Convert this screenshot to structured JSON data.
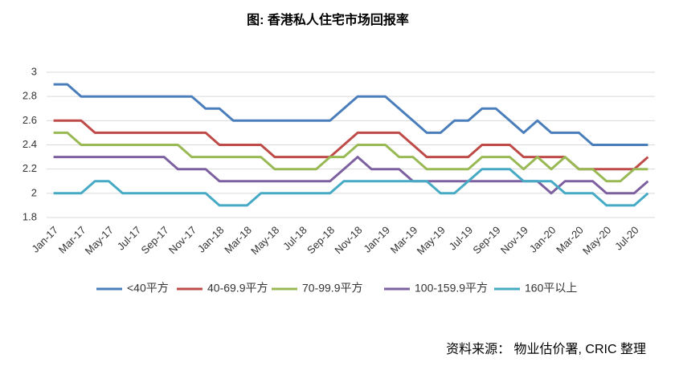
{
  "chart_data": {
    "type": "line",
    "title": "图: 香港私人住宅市场回报率",
    "source": "资料来源： 物业估价署, CRIC 整理",
    "categories": [
      "Jan-17",
      null,
      "Mar-17",
      null,
      "May-17",
      null,
      "Jul-17",
      null,
      "Sep-17",
      null,
      "Nov-17",
      null,
      "Jan-18",
      null,
      "Mar-18",
      null,
      "May-18",
      null,
      "Jul-18",
      null,
      "Sep-18",
      null,
      "Nov-18",
      null,
      "Jan-19",
      null,
      "Mar-19",
      null,
      "May-19",
      null,
      "Jul-19",
      null,
      "Sep-19",
      null,
      "Nov-19",
      null,
      "Jan-20",
      null,
      "Mar-20",
      null,
      "May-20",
      null,
      "Jul-20",
      null
    ],
    "series": [
      {
        "name": "<40平方",
        "color": "#4a7ebb",
        "values": [
          2.9,
          2.9,
          2.8,
          2.8,
          2.8,
          2.8,
          2.8,
          2.8,
          2.8,
          2.8,
          2.8,
          2.7,
          2.7,
          2.6,
          2.6,
          2.6,
          2.6,
          2.6,
          2.6,
          2.6,
          2.6,
          2.7,
          2.8,
          2.8,
          2.8,
          2.7,
          2.6,
          2.5,
          2.5,
          2.6,
          2.6,
          2.7,
          2.7,
          2.6,
          2.5,
          2.6,
          2.5,
          2.5,
          2.5,
          2.4,
          2.4,
          2.4,
          2.4,
          2.4
        ]
      },
      {
        "name": "40-69.9平方",
        "color": "#be4b48",
        "values": [
          2.6,
          2.6,
          2.6,
          2.5,
          2.5,
          2.5,
          2.5,
          2.5,
          2.5,
          2.5,
          2.5,
          2.5,
          2.4,
          2.4,
          2.4,
          2.4,
          2.3,
          2.3,
          2.3,
          2.3,
          2.3,
          2.4,
          2.5,
          2.5,
          2.5,
          2.5,
          2.4,
          2.3,
          2.3,
          2.3,
          2.3,
          2.4,
          2.4,
          2.4,
          2.3,
          2.3,
          2.3,
          2.3,
          2.2,
          2.2,
          2.2,
          2.2,
          2.2,
          2.3
        ]
      },
      {
        "name": "70-99.9平方",
        "color": "#98b954",
        "values": [
          2.5,
          2.5,
          2.4,
          2.4,
          2.4,
          2.4,
          2.4,
          2.4,
          2.4,
          2.4,
          2.3,
          2.3,
          2.3,
          2.3,
          2.3,
          2.3,
          2.2,
          2.2,
          2.2,
          2.2,
          2.3,
          2.3,
          2.4,
          2.4,
          2.4,
          2.3,
          2.3,
          2.2,
          2.2,
          2.2,
          2.2,
          2.3,
          2.3,
          2.3,
          2.2,
          2.3,
          2.2,
          2.3,
          2.2,
          2.2,
          2.1,
          2.1,
          2.2,
          2.2
        ]
      },
      {
        "name": "100-159.9平方",
        "color": "#7d60a0",
        "values": [
          2.3,
          2.3,
          2.3,
          2.3,
          2.3,
          2.3,
          2.3,
          2.3,
          2.3,
          2.2,
          2.2,
          2.2,
          2.1,
          2.1,
          2.1,
          2.1,
          2.1,
          2.1,
          2.1,
          2.1,
          2.1,
          2.2,
          2.3,
          2.2,
          2.2,
          2.2,
          2.1,
          2.1,
          2.1,
          2.1,
          2.1,
          2.1,
          2.1,
          2.1,
          2.1,
          2.1,
          2.0,
          2.1,
          2.1,
          2.1,
          2.0,
          2.0,
          2.0,
          2.1
        ]
      },
      {
        "name": "160平以上",
        "color": "#46aac5",
        "values": [
          2.0,
          2.0,
          2.0,
          2.1,
          2.1,
          2.0,
          2.0,
          2.0,
          2.0,
          2.0,
          2.0,
          2.0,
          1.9,
          1.9,
          1.9,
          2.0,
          2.0,
          2.0,
          2.0,
          2.0,
          2.0,
          2.1,
          2.1,
          2.1,
          2.1,
          2.1,
          2.1,
          2.1,
          2.0,
          2.0,
          2.1,
          2.2,
          2.2,
          2.2,
          2.1,
          2.1,
          2.1,
          2.0,
          2.0,
          2.0,
          1.9,
          1.9,
          1.9,
          2.0
        ]
      }
    ],
    "ylim": [
      1.8,
      3
    ],
    "yticks": [
      1.8,
      2,
      2.2,
      2.4,
      2.6,
      2.8,
      3
    ],
    "grid": true,
    "legend": "bottom"
  }
}
